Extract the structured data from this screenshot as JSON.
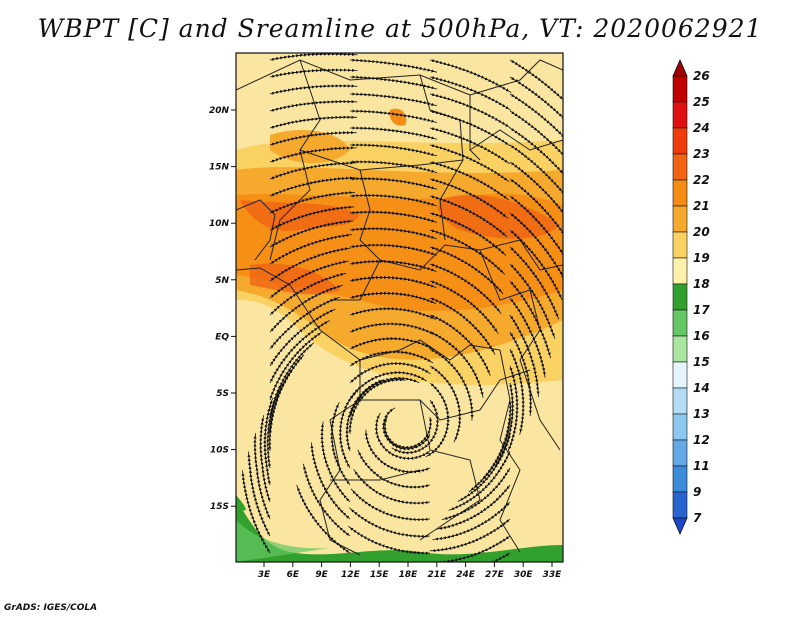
{
  "title": "WBPT [C] and Sreamline at 500hPa, VT: 2020062921",
  "credit": "GrADS: IGES/COLA",
  "map": {
    "lat_labels": [
      "20N",
      "15N",
      "10N",
      "5N",
      "EQ",
      "5S",
      "10S",
      "15S"
    ],
    "lon_labels": [
      "3E",
      "6E",
      "9E",
      "12E",
      "15E",
      "18E",
      "21E",
      "24E",
      "27E",
      "30E",
      "33E"
    ],
    "field": "WBPT",
    "units": "C",
    "level": "500hPa",
    "valid_time": "2020062921",
    "vortex": "cyclonic circulation near 8S, 17E"
  },
  "colorbar": {
    "labels": [
      "26",
      "25",
      "24",
      "23",
      "22",
      "21",
      "20",
      "19",
      "18",
      "17",
      "16",
      "15",
      "14",
      "13",
      "12",
      "11",
      "9",
      "7"
    ],
    "colors": [
      "#a00000",
      "#c00000",
      "#e01010",
      "#f03c0a",
      "#f06414",
      "#f58c14",
      "#f5aa2d",
      "#fad264",
      "#fff0aa",
      "#32a02d",
      "#64c864",
      "#aae6a0",
      "#e6f6ff",
      "#b4dcf5",
      "#8cc8f0",
      "#64a8e6",
      "#3c8cdc",
      "#2864d2",
      "#1e46c8"
    ]
  }
}
